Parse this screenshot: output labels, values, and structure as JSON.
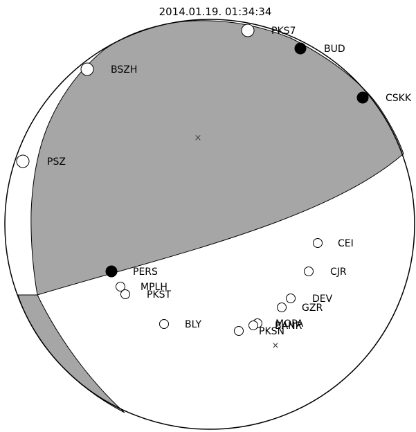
{
  "title": "2014.01.19. 01:34:34",
  "colors": {
    "background": "#ffffff",
    "compression": "#a6a6a6",
    "outline": "#000000"
  },
  "stations": [
    {
      "id": "PKS7",
      "label": "PKS7",
      "polarity": "dilatation"
    },
    {
      "id": "BUD",
      "label": "BUD",
      "polarity": "compression"
    },
    {
      "id": "BSZH",
      "label": "BSZH",
      "polarity": "dilatation"
    },
    {
      "id": "CSKK",
      "label": "CSKK",
      "polarity": "compression"
    },
    {
      "id": "PSZ",
      "label": "PSZ",
      "polarity": "dilatation"
    },
    {
      "id": "CEI",
      "label": "CEI",
      "polarity": "dilatation"
    },
    {
      "id": "PERS",
      "label": "PERS",
      "polarity": "compression"
    },
    {
      "id": "CJR",
      "label": "CJR",
      "polarity": "dilatation"
    },
    {
      "id": "MPLH",
      "label": "MPLH",
      "polarity": "dilatation"
    },
    {
      "id": "PKST",
      "label": "PKST",
      "polarity": "dilatation"
    },
    {
      "id": "DEV",
      "label": "DEV",
      "polarity": "dilatation"
    },
    {
      "id": "GZR",
      "label": "GZR",
      "polarity": "dilatation"
    },
    {
      "id": "BLY",
      "label": "BLY",
      "polarity": "dilatation"
    },
    {
      "id": "MOPA",
      "label": "MOPA",
      "polarity": "dilatation"
    },
    {
      "id": "BANR",
      "label": "BANR",
      "polarity": "dilatation"
    },
    {
      "id": "PKSN",
      "label": "PKSN",
      "polarity": "dilatation"
    }
  ],
  "axes": [
    {
      "id": "p-axis",
      "symbol": "×"
    },
    {
      "id": "t-axis",
      "symbol": "×"
    }
  ]
}
